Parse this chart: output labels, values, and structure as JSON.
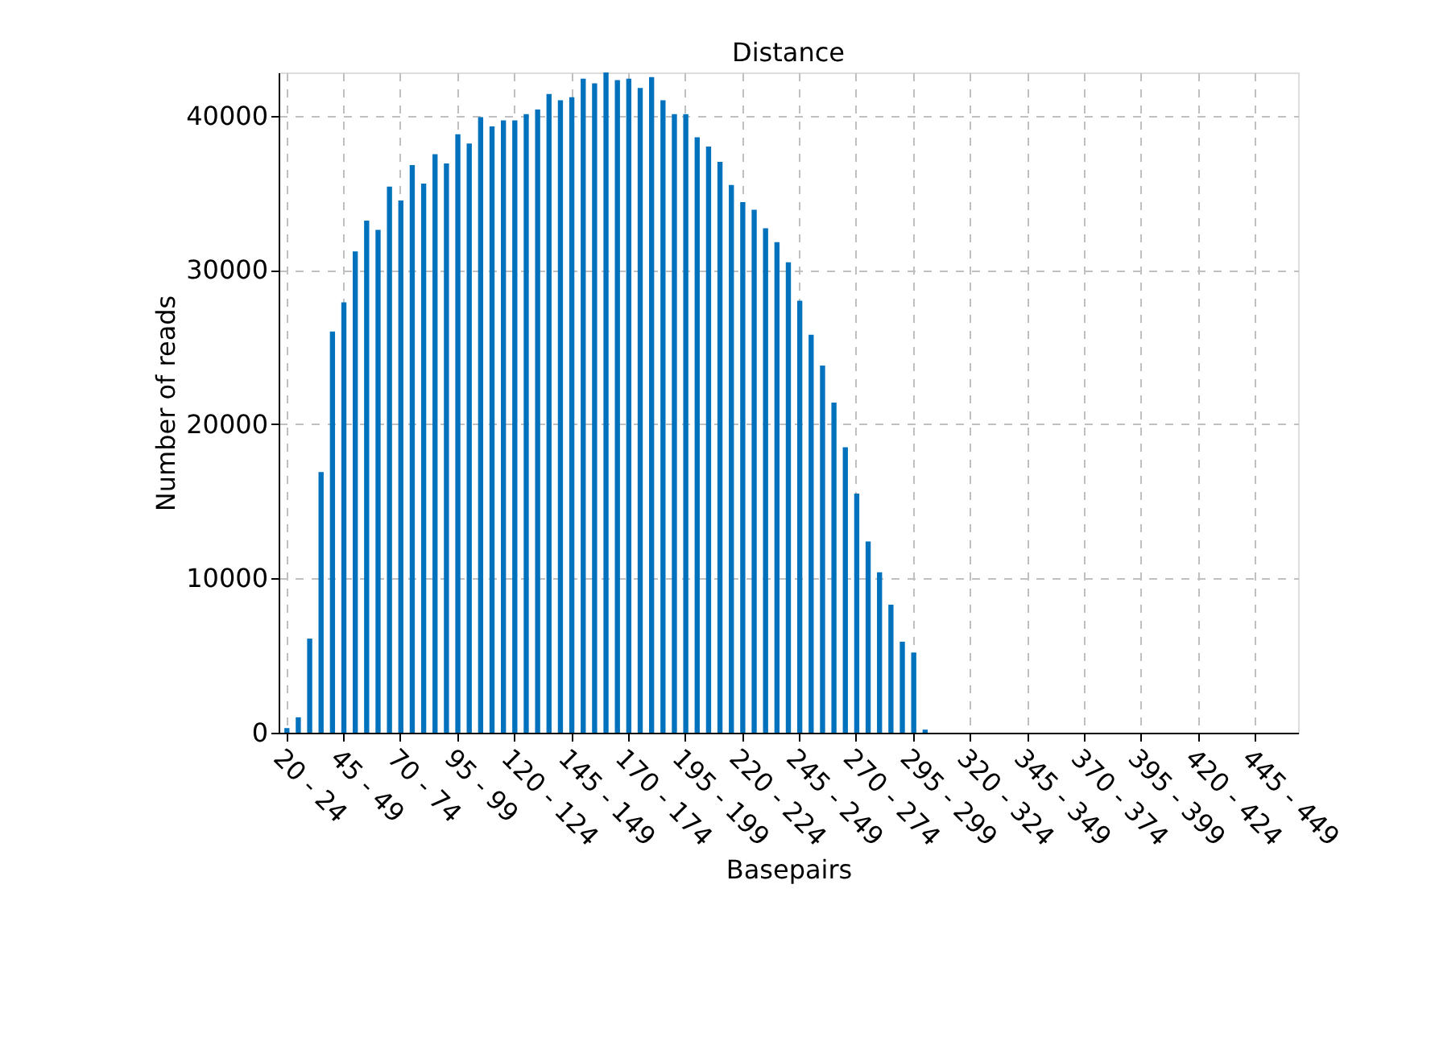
{
  "chart_data": {
    "type": "bar",
    "title": "Distance",
    "xlabel": "Basepairs",
    "ylabel": "Number of reads",
    "categories": [
      "20 - 24",
      null,
      null,
      null,
      null,
      "45 - 49",
      null,
      null,
      null,
      null,
      "70 - 74",
      null,
      null,
      null,
      null,
      "95 - 99",
      null,
      null,
      null,
      null,
      "120 - 124",
      null,
      null,
      null,
      null,
      "145 - 149",
      null,
      null,
      null,
      null,
      "170 - 174",
      null,
      null,
      null,
      null,
      "195 - 199",
      null,
      null,
      null,
      null,
      "220 - 224",
      null,
      null,
      null,
      null,
      "245 - 249",
      null,
      null,
      null,
      null,
      "270 - 274",
      null,
      null,
      null,
      null,
      "295 - 299",
      null,
      null,
      null,
      null,
      "320 - 324",
      null,
      null,
      null,
      null,
      "345 - 349",
      null,
      null,
      null,
      null,
      "370 - 374",
      null,
      null,
      null,
      null,
      "395 - 399",
      null,
      null,
      null,
      null,
      "420 - 424",
      null,
      null,
      null,
      null,
      "445 - 449",
      null,
      null,
      null
    ],
    "values": [
      300,
      1000,
      6100,
      16900,
      26000,
      27900,
      31200,
      33200,
      32600,
      35400,
      34500,
      36800,
      35600,
      37500,
      36900,
      38800,
      38200,
      39900,
      39300,
      39700,
      39700,
      40100,
      40400,
      41400,
      41000,
      41200,
      42400,
      42100,
      42800,
      42300,
      42400,
      41800,
      42500,
      41000,
      40100,
      40100,
      38600,
      38000,
      37000,
      35500,
      34400,
      33900,
      32700,
      31800,
      30500,
      28000,
      25800,
      23800,
      21400,
      18500,
      15500,
      12400,
      10400,
      8300,
      5900,
      5200,
      200,
      0,
      0,
      0,
      0,
      0,
      0,
      0,
      0,
      0,
      0,
      0,
      0,
      0,
      0,
      0,
      0,
      0,
      0,
      0,
      0,
      0,
      0,
      0,
      0,
      0,
      0,
      0,
      0,
      0,
      0,
      0,
      0
    ],
    "color": "#0072bd",
    "ylim": [
      0,
      42800
    ],
    "yticks": [
      0,
      10000,
      20000,
      30000,
      40000
    ],
    "grid": true
  }
}
